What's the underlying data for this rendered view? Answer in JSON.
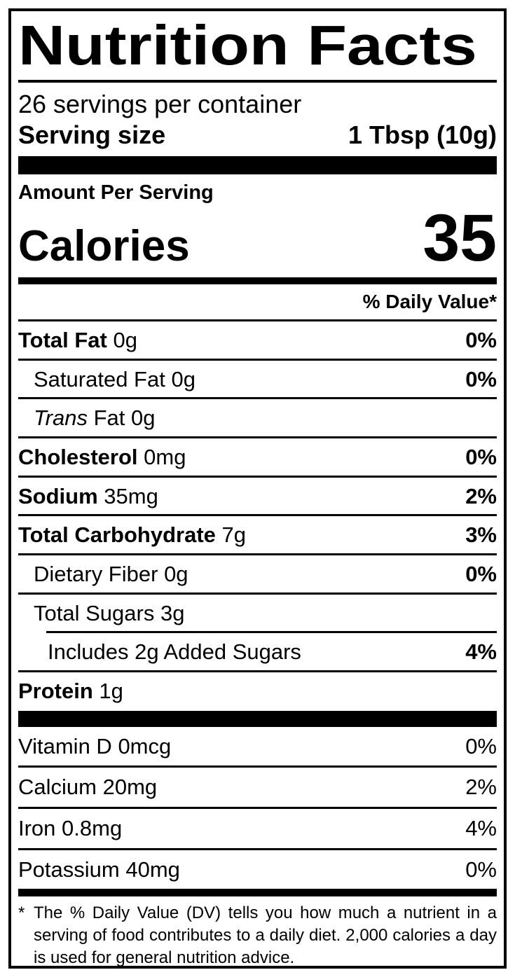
{
  "label": {
    "title": "Nutrition Facts",
    "servings_per_container": "26 servings per container",
    "serving_size": {
      "label": "Serving size",
      "value": "1 Tbsp (10g)"
    },
    "amount_per_serving": "Amount Per Serving",
    "calories": {
      "label": "Calories",
      "value": "35"
    },
    "daily_value_header": "% Daily Value*",
    "nutrients": [
      {
        "name": "Total Fat",
        "amount": "0g",
        "dv": "0%"
      },
      {
        "name": "Saturated Fat",
        "amount": "0g",
        "dv": "0%"
      },
      {
        "name_italic": "Trans",
        "name": "Fat",
        "amount": "0g",
        "dv": ""
      },
      {
        "name": "Cholesterol",
        "amount": "0mg",
        "dv": "0%"
      },
      {
        "name": "Sodium",
        "amount": "35mg",
        "dv": "2%"
      },
      {
        "name": "Total Carbohydrate",
        "amount": "7g",
        "dv": "3%"
      },
      {
        "name": "Dietary Fiber",
        "amount": "0g",
        "dv": "0%"
      },
      {
        "name": "Total Sugars",
        "amount": "3g",
        "dv": ""
      },
      {
        "name": "Includes 2g Added Sugars",
        "amount": "",
        "dv": "4%"
      },
      {
        "name": "Protein",
        "amount": "1g",
        "dv": ""
      }
    ],
    "vitamins": [
      {
        "name": "Vitamin D",
        "amount": "0mcg",
        "dv": "0%"
      },
      {
        "name": "Calcium",
        "amount": "20mg",
        "dv": "2%"
      },
      {
        "name": "Iron",
        "amount": "0.8mg",
        "dv": "4%"
      },
      {
        "name": "Potassium",
        "amount": "40mg",
        "dv": "0%"
      }
    ],
    "footnote": {
      "marker": "*",
      "text": "The % Daily Value (DV) tells you how much a nutrient in a serving of food contributes to a daily diet. 2,000 calories a day is used for general nutrition advice."
    }
  }
}
